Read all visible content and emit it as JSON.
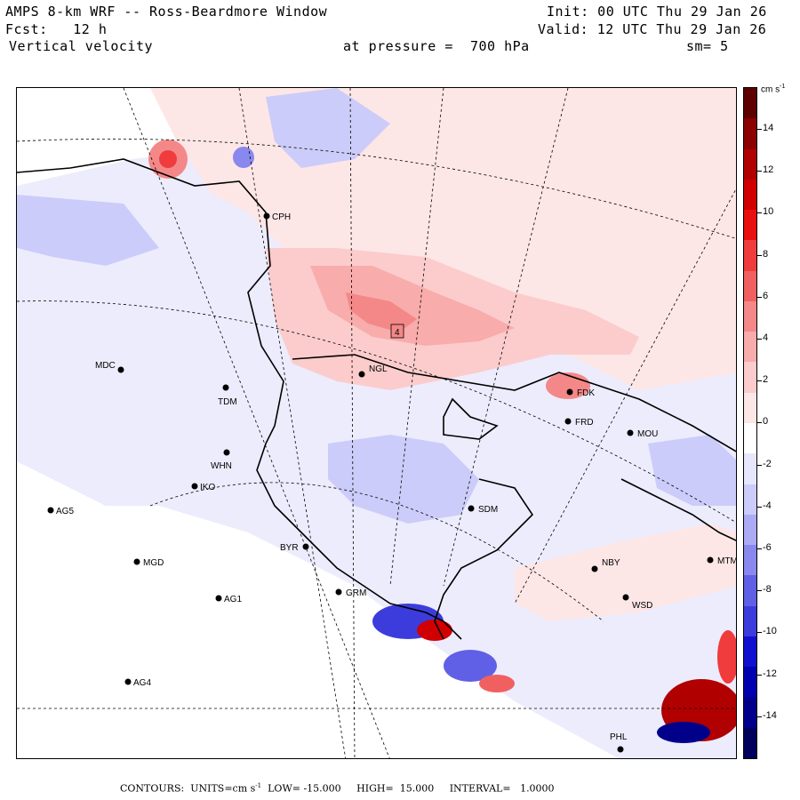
{
  "header": {
    "title": "AMPS 8-km WRF -- Ross-Beardmore Window",
    "forecast": "Fcst:   12 h",
    "field": "Vertical velocity",
    "level": "at pressure =  700 hPa",
    "init": "Init: 00 UTC Thu 29 Jan 26",
    "valid": "Valid: 12 UTC Thu 29 Jan 26",
    "smoothing": "sm= 5"
  },
  "colorbar": {
    "unit": "cm s",
    "unit_exp": "-1",
    "ticks": [
      "14",
      "12",
      "10",
      "8",
      "6",
      "4",
      "2",
      "0",
      "-2",
      "-4",
      "-6",
      "-8",
      "-10",
      "-12",
      "-14"
    ],
    "colors_top_to_bottom": [
      "#5c0000",
      "#8b0000",
      "#b00000",
      "#d00000",
      "#e81010",
      "#f03c3c",
      "#f06060",
      "#f48888",
      "#f8acac",
      "#fccccc",
      "#fde6e6",
      "#ffffff",
      "#e6e6fd",
      "#ccccfa",
      "#ababf5",
      "#8888ee",
      "#6060e6",
      "#3c3cdc",
      "#1010d0",
      "#0000b0",
      "#00008b",
      "#00005c"
    ]
  },
  "map": {
    "stations": [
      {
        "name": "CPH"
      },
      {
        "name": "NGL"
      },
      {
        "name": "MDC"
      },
      {
        "name": "TDM"
      },
      {
        "name": "FDK"
      },
      {
        "name": "FRD"
      },
      {
        "name": "MOU"
      },
      {
        "name": "WHN"
      },
      {
        "name": "IKO"
      },
      {
        "name": "AG5"
      },
      {
        "name": "SDM"
      },
      {
        "name": "BYR"
      },
      {
        "name": "GRM"
      },
      {
        "name": "MGD"
      },
      {
        "name": "NBY"
      },
      {
        "name": "MTM"
      },
      {
        "name": "AG1"
      },
      {
        "name": "WSD"
      },
      {
        "name": "AG4"
      },
      {
        "name": "PHL"
      }
    ],
    "max_label": "4"
  },
  "footer": {
    "contours_label": "CONTOURS:",
    "units_label": "UNITS=cm s",
    "units_exp": "-1",
    "low": "LOW= -15.000",
    "high": "HIGH=  15.000",
    "interval": "INTERVAL=   1.0000"
  }
}
